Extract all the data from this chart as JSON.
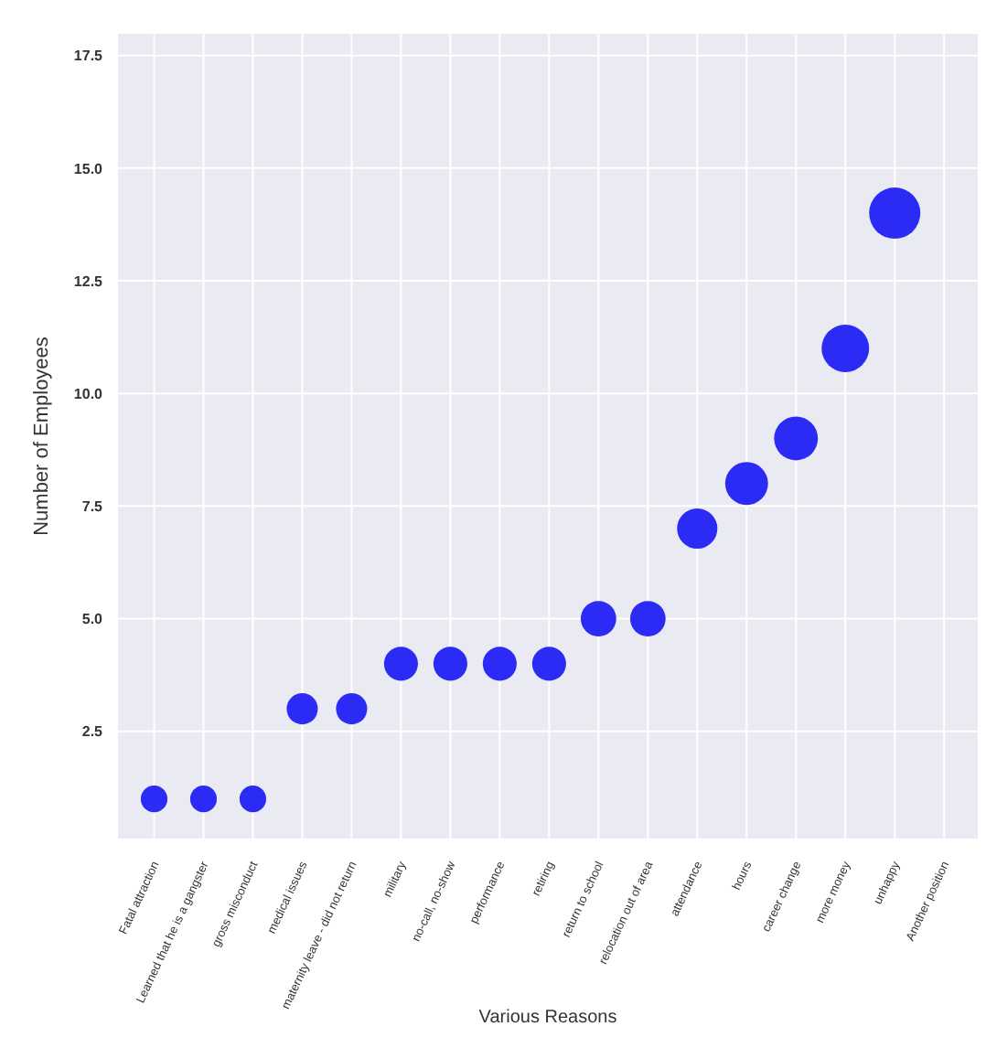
{
  "chart_data": {
    "type": "bubble",
    "xlabel": "Various Reasons",
    "ylabel": "Number of Employees",
    "categories": [
      "Fatal attraction",
      "Learned that he is a gangster",
      "gross misconduct",
      "medical issues",
      "maternity leave - did not return",
      "military",
      "no-call, no-show",
      "performance",
      "retiring",
      "return to school",
      "relocation out of area",
      "attendance",
      "hours",
      "career change",
      "more money",
      "unhappy",
      "Another position"
    ],
    "series": [
      {
        "color": "#2b2bf5",
        "values": [
          1,
          1,
          1,
          3,
          3,
          4,
          4,
          4,
          4,
          5,
          5,
          7,
          8,
          9,
          11,
          14,
          null
        ],
        "sizes": [
          0.27,
          0.27,
          0.27,
          0.37,
          0.37,
          0.44,
          0.44,
          0.44,
          0.44,
          0.48,
          0.48,
          0.62,
          0.7,
          0.73,
          0.86,
          1,
          null
        ]
      }
    ],
    "ylim": [
      0.1,
      18
    ],
    "yticks": [
      2.5,
      {
        "value": 5,
        "label": "5.0"
      },
      7.5,
      {
        "value": 10,
        "label": "10.0"
      },
      12.5,
      {
        "value": 15,
        "label": "15.0"
      },
      17.5
    ],
    "grid": true,
    "legend": false
  }
}
